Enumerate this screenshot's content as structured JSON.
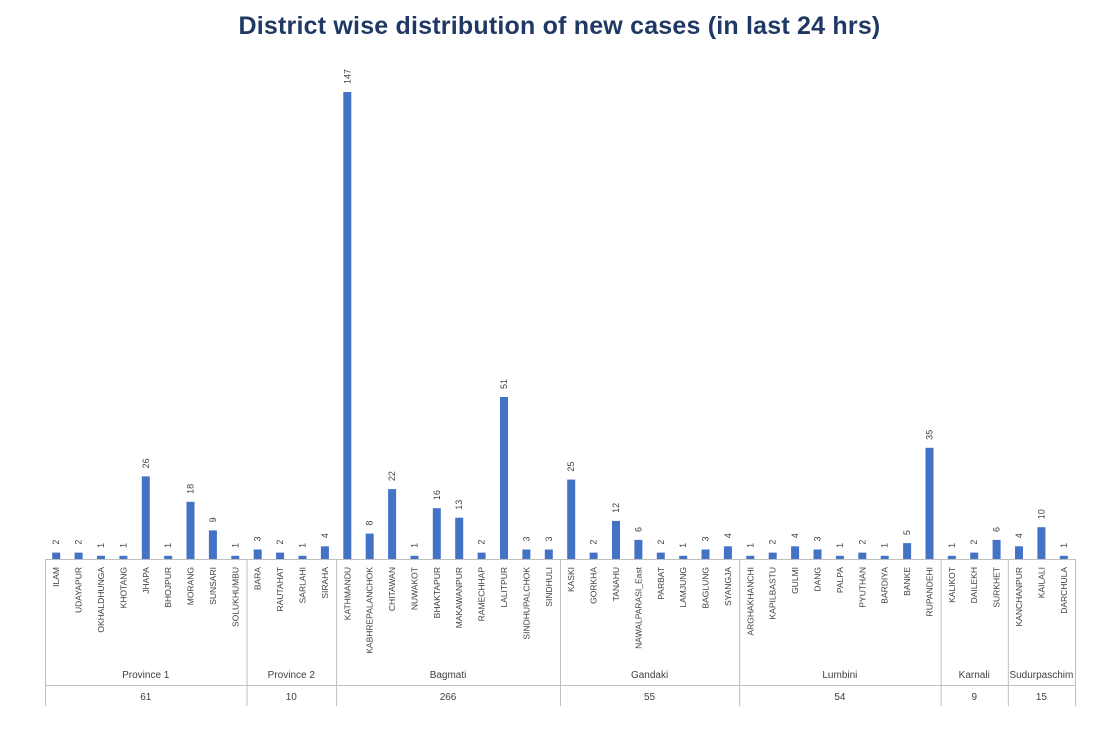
{
  "chart_data": {
    "type": "bar",
    "title": "District wise distribution of new cases (in last 24 hrs)",
    "xlabel": "",
    "ylabel": "",
    "ylim": [
      0,
      150
    ],
    "grid": false,
    "legend": "none",
    "bar_color": "#4472c4",
    "categories": [
      "ILAM",
      "UDAYAPUR",
      "OKHALDHUNGA",
      "KHOTANG",
      "JHAPA",
      "BHOJPUR",
      "MORANG",
      "SUNSARI",
      "SOLUKHUMBU",
      "BARA",
      "RAUTAHAT",
      "SARLAHI",
      "SIRAHA",
      "KATHMANDU",
      "KABHREPALANCHOK",
      "CHITAWAN",
      "NUWAKOT",
      "BHAKTAPUR",
      "MAKAWANPUR",
      "RAMECHHAP",
      "LALITPUR",
      "SINDHUPALCHOK",
      "SINDHULI",
      "KASKI",
      "GORKHA",
      "TANAHU",
      "NAWALPARASI_East",
      "PARBAT",
      "LAMJUNG",
      "BAGLUNG",
      "SYANGJA",
      "ARGHAKHANCHI",
      "KAPILBASTU",
      "GULMI",
      "DANG",
      "PALPA",
      "PYUTHAN",
      "BARDIYA",
      "BANKE",
      "RUPANDEHI",
      "KALIKOT",
      "DAILEKH",
      "SURKHET",
      "KANCHANPUR",
      "KAILALI",
      "DARCHULA"
    ],
    "values": [
      2,
      2,
      1,
      1,
      26,
      1,
      18,
      9,
      1,
      3,
      2,
      1,
      4,
      147,
      8,
      22,
      1,
      16,
      13,
      2,
      51,
      3,
      3,
      25,
      2,
      12,
      6,
      2,
      1,
      3,
      4,
      1,
      2,
      4,
      3,
      1,
      2,
      1,
      5,
      35,
      1,
      2,
      6,
      4,
      10,
      1
    ],
    "groups": [
      {
        "name": "Province 1",
        "total": "61",
        "count": 9
      },
      {
        "name": "Province 2",
        "total": "10",
        "count": 4
      },
      {
        "name": "Bagmati",
        "total": "266",
        "count": 10
      },
      {
        "name": "Gandaki",
        "total": "55",
        "count": 8
      },
      {
        "name": "Lumbini",
        "total": "54",
        "count": 9
      },
      {
        "name": "Karnali",
        "total": "9",
        "count": 3
      },
      {
        "name": "Sudurpaschim",
        "total": "15",
        "count": 3
      }
    ]
  }
}
